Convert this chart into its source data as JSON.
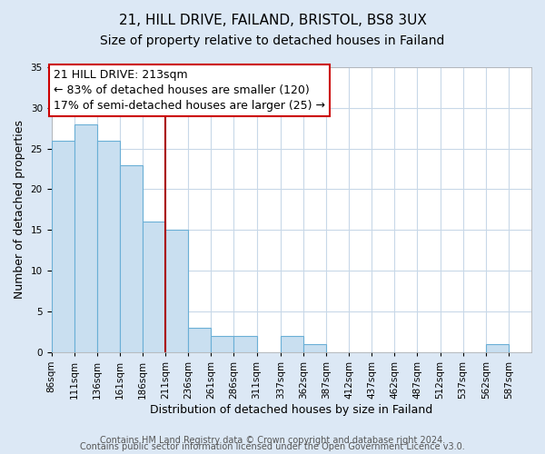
{
  "title1": "21, HILL DRIVE, FAILAND, BRISTOL, BS8 3UX",
  "title2": "Size of property relative to detached houses in Failand",
  "xlabel": "Distribution of detached houses by size in Failand",
  "ylabel": "Number of detached properties",
  "bin_labels": [
    "86sqm",
    "111sqm",
    "136sqm",
    "161sqm",
    "186sqm",
    "211sqm",
    "236sqm",
    "261sqm",
    "286sqm",
    "311sqm",
    "337sqm",
    "362sqm",
    "387sqm",
    "412sqm",
    "437sqm",
    "462sqm",
    "487sqm",
    "512sqm",
    "537sqm",
    "562sqm",
    "587sqm"
  ],
  "bin_edges": [
    86,
    111,
    136,
    161,
    186,
    211,
    236,
    261,
    286,
    311,
    337,
    362,
    387,
    412,
    437,
    462,
    487,
    512,
    537,
    562,
    587,
    612
  ],
  "bar_heights": [
    26,
    28,
    26,
    23,
    16,
    15,
    3,
    2,
    2,
    0,
    2,
    1,
    0,
    0,
    0,
    0,
    0,
    0,
    0,
    1,
    0
  ],
  "bar_color": "#c9dff0",
  "bar_edge_color": "#6aafd6",
  "vline_x": 211,
  "vline_color": "#aa0000",
  "ylim": [
    0,
    35
  ],
  "yticks": [
    0,
    5,
    10,
    15,
    20,
    25,
    30,
    35
  ],
  "annotation_line1": "21 HILL DRIVE: 213sqm",
  "annotation_line2": "← 83% of detached houses are smaller (120)",
  "annotation_line3": "17% of semi-detached houses are larger (25) →",
  "box_color": "white",
  "box_edge_color": "#cc0000",
  "footnote1": "Contains HM Land Registry data © Crown copyright and database right 2024.",
  "footnote2": "Contains public sector information licensed under the Open Government Licence v3.0.",
  "fig_bg_color": "#dce8f5",
  "plot_bg_color": "#ffffff",
  "grid_color": "#c8d8e8",
  "title_fontsize": 11,
  "subtitle_fontsize": 10,
  "axis_label_fontsize": 9,
  "tick_fontsize": 7.5,
  "annotation_fontsize": 9,
  "footnote_fontsize": 7
}
